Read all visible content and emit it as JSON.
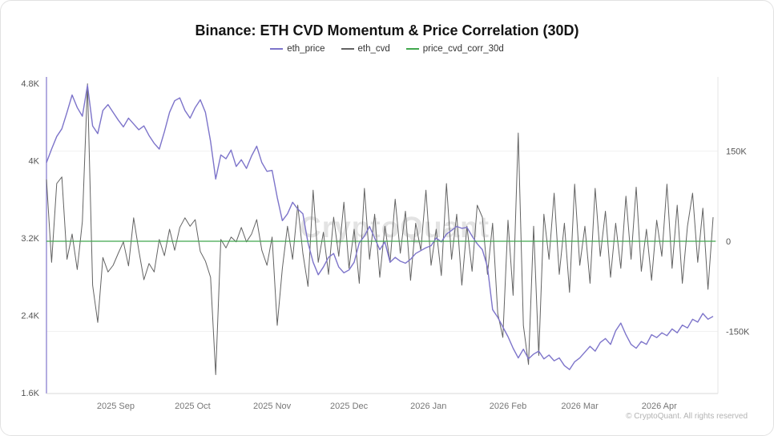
{
  "card": {
    "title": "Binance: ETH CVD Momentum & Price Correlation (30D)",
    "watermark": "CryptoQuant",
    "copyright": "© CryptoQuant. All rights reserved"
  },
  "chart_data": {
    "type": "line",
    "title": "Binance: ETH CVD Momentum & Price Correlation (30D)",
    "legend_position": "top-center",
    "grid": "faint horizontal lines at right-axis ticks",
    "day_step": 2,
    "x_start_label_note": "x span ≈ early Aug 2025 → late Apr 2026, daily data",
    "x_axis": {
      "tick_labels": [
        "2025 Sep",
        "2025 Oct",
        "2025 Nov",
        "2025 Dec",
        "2026 Jan",
        "2026 Feb",
        "2026 Mar",
        "2026 Apr"
      ],
      "tick_days": [
        27,
        57,
        88,
        118,
        149,
        180,
        208,
        239
      ]
    },
    "left_axis": {
      "series": "eth_price",
      "tick_labels": [
        "4.8K",
        "4K",
        "3.2K",
        "2.4K",
        "1.6K"
      ],
      "tick_values_k": [
        4.8,
        4,
        3.2,
        2.4,
        1.6
      ],
      "range_k": [
        1.6,
        4.8
      ]
    },
    "right_axis": {
      "series": "eth_cvd",
      "tick_labels": [
        "150K",
        "0",
        "-150K"
      ],
      "tick_values_k": [
        150,
        0,
        -150
      ]
    },
    "series": [
      {
        "name": "eth_price",
        "color": "#7d74ca",
        "axis": "left",
        "unit": "thousand USD",
        "stroke_width": 1.4,
        "values": [
          3.98,
          4.12,
          4.25,
          4.33,
          4.5,
          4.68,
          4.55,
          4.46,
          4.78,
          4.36,
          4.28,
          4.52,
          4.58,
          4.5,
          4.42,
          4.35,
          4.44,
          4.38,
          4.32,
          4.36,
          4.26,
          4.18,
          4.12,
          4.3,
          4.5,
          4.62,
          4.65,
          4.52,
          4.44,
          4.55,
          4.63,
          4.5,
          4.2,
          3.81,
          4.06,
          4.02,
          4.11,
          3.94,
          4.01,
          3.92,
          4.05,
          4.15,
          3.98,
          3.89,
          3.9,
          3.62,
          3.38,
          3.45,
          3.57,
          3.5,
          3.45,
          3.15,
          2.95,
          2.82,
          2.9,
          3.0,
          3.04,
          2.9,
          2.84,
          2.87,
          2.95,
          3.15,
          3.22,
          3.32,
          3.2,
          3.08,
          3.16,
          2.95,
          3.0,
          2.96,
          2.94,
          2.98,
          3.04,
          3.07,
          3.1,
          3.12,
          3.2,
          3.16,
          3.24,
          3.28,
          3.32,
          3.3,
          3.31,
          3.22,
          3.14,
          3.08,
          2.9,
          2.46,
          2.38,
          2.28,
          2.18,
          2.06,
          1.96,
          2.05,
          1.95,
          2.0,
          2.03,
          1.95,
          1.99,
          1.93,
          1.96,
          1.88,
          1.84,
          1.92,
          1.96,
          2.02,
          2.08,
          2.03,
          2.12,
          2.16,
          2.1,
          2.24,
          2.32,
          2.2,
          2.1,
          2.06,
          2.13,
          2.1,
          2.2,
          2.17,
          2.22,
          2.19,
          2.26,
          2.22,
          2.3,
          2.27,
          2.36,
          2.33,
          2.42,
          2.36,
          2.39
        ]
      },
      {
        "name": "eth_cvd",
        "color": "#636363",
        "axis": "right",
        "unit": "thousand (CVD momentum)",
        "stroke_width": 1,
        "values": [
          103,
          -35,
          96,
          107,
          -30,
          12,
          -47,
          33,
          262,
          -73,
          -135,
          -27,
          -51,
          -40,
          -20,
          -1,
          -41,
          39,
          -15,
          -64,
          -37,
          -51,
          3,
          -24,
          20,
          -15,
          23,
          39,
          25,
          36,
          -17,
          -33,
          -60,
          -222,
          3,
          -11,
          7,
          -1,
          23,
          -1,
          12,
          36,
          -15,
          -40,
          7,
          -140,
          -45,
          25,
          -30,
          60,
          -20,
          -75,
          85,
          -35,
          15,
          -55,
          40,
          -25,
          65,
          -45,
          20,
          -70,
          88,
          -30,
          45,
          -60,
          25,
          -35,
          70,
          -20,
          50,
          -65,
          30,
          -15,
          85,
          -40,
          20,
          -57,
          96,
          -30,
          45,
          -73,
          25,
          -50,
          60,
          40,
          -55,
          30,
          -120,
          -160,
          35,
          -90,
          180,
          -140,
          -205,
          25,
          -190,
          45,
          -30,
          80,
          -55,
          30,
          -85,
          95,
          -40,
          25,
          -70,
          88,
          -25,
          50,
          -60,
          30,
          -45,
          75,
          -30,
          90,
          -50,
          20,
          -65,
          35,
          -25,
          95,
          -45,
          60,
          -70,
          25,
          80,
          -35,
          55,
          -80,
          40
        ]
      },
      {
        "name": "price_cvd_corr_30d",
        "color": "#41a84e",
        "axis": "right",
        "unit": "correlation (-1..1), flat ≈ 0 at axis scale",
        "stroke_width": 1.2,
        "days": [
          0,
          261
        ],
        "values": [
          0,
          0
        ]
      }
    ]
  }
}
